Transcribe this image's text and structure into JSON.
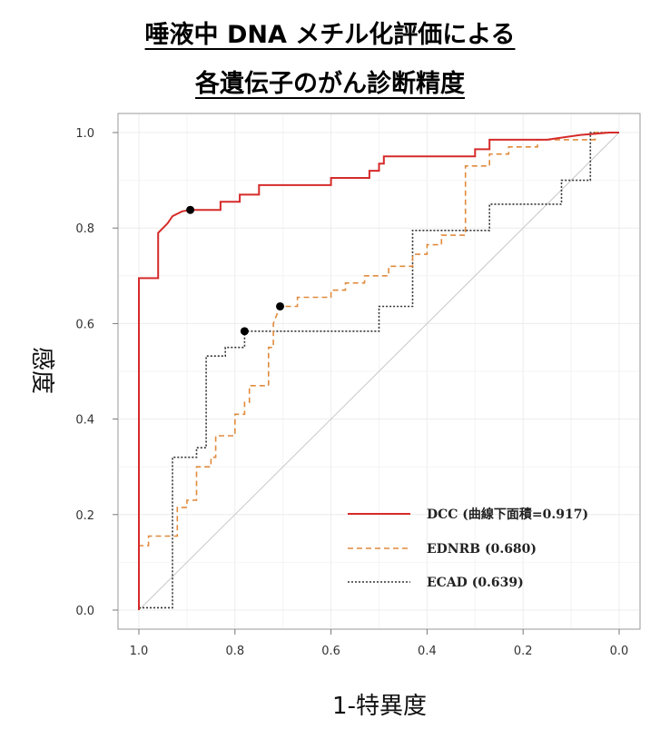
{
  "title_line1": "唾液中 DNA メチル化評価による",
  "title_line2": "各遺伝子のがん診断精度",
  "chart_data": {
    "type": "line",
    "xlabel": "1-特異度",
    "ylabel": "感度",
    "xlim": [
      1.0,
      0.0
    ],
    "ylim": [
      0.0,
      1.0
    ],
    "x_ticks": [
      "1.0",
      "0.8",
      "0.6",
      "0.4",
      "0.2",
      "0.0"
    ],
    "y_ticks": [
      "0.0",
      "0.2",
      "0.4",
      "0.6",
      "0.8",
      "1.0"
    ],
    "grid": true,
    "diagonal_reference": true,
    "legend_position": "bottom-right",
    "series": [
      {
        "name": "DCC (曲線下面積=0.917)",
        "color": "#d62a2a",
        "dash": "solid",
        "marker": [
          0.893,
          0.838
        ],
        "points": [
          [
            1.0,
            0.0
          ],
          [
            1.0,
            0.695
          ],
          [
            0.96,
            0.695
          ],
          [
            0.96,
            0.79
          ],
          [
            0.95,
            0.8
          ],
          [
            0.94,
            0.81
          ],
          [
            0.93,
            0.825
          ],
          [
            0.91,
            0.835
          ],
          [
            0.893,
            0.838
          ],
          [
            0.83,
            0.838
          ],
          [
            0.83,
            0.855
          ],
          [
            0.79,
            0.855
          ],
          [
            0.79,
            0.87
          ],
          [
            0.75,
            0.87
          ],
          [
            0.75,
            0.89
          ],
          [
            0.6,
            0.89
          ],
          [
            0.6,
            0.905
          ],
          [
            0.52,
            0.905
          ],
          [
            0.52,
            0.92
          ],
          [
            0.5,
            0.92
          ],
          [
            0.5,
            0.935
          ],
          [
            0.49,
            0.935
          ],
          [
            0.49,
            0.95
          ],
          [
            0.3,
            0.95
          ],
          [
            0.3,
            0.965
          ],
          [
            0.27,
            0.965
          ],
          [
            0.27,
            0.985
          ],
          [
            0.15,
            0.985
          ],
          [
            0.08,
            0.995
          ],
          [
            0.02,
            1.0
          ],
          [
            0.0,
            1.0
          ]
        ]
      },
      {
        "name": "EDNRB (0.680)",
        "color": "#e08a3c",
        "dash": "6,4",
        "marker": [
          0.706,
          0.636
        ],
        "points": [
          [
            1.0,
            0.0
          ],
          [
            1.0,
            0.135
          ],
          [
            0.98,
            0.135
          ],
          [
            0.98,
            0.155
          ],
          [
            0.92,
            0.155
          ],
          [
            0.92,
            0.215
          ],
          [
            0.9,
            0.215
          ],
          [
            0.9,
            0.23
          ],
          [
            0.88,
            0.23
          ],
          [
            0.88,
            0.3
          ],
          [
            0.85,
            0.3
          ],
          [
            0.85,
            0.32
          ],
          [
            0.84,
            0.32
          ],
          [
            0.84,
            0.365
          ],
          [
            0.8,
            0.365
          ],
          [
            0.8,
            0.41
          ],
          [
            0.78,
            0.41
          ],
          [
            0.78,
            0.435
          ],
          [
            0.77,
            0.435
          ],
          [
            0.77,
            0.47
          ],
          [
            0.73,
            0.47
          ],
          [
            0.73,
            0.55
          ],
          [
            0.72,
            0.55
          ],
          [
            0.72,
            0.6
          ],
          [
            0.706,
            0.636
          ],
          [
            0.67,
            0.636
          ],
          [
            0.67,
            0.655
          ],
          [
            0.6,
            0.655
          ],
          [
            0.6,
            0.67
          ],
          [
            0.57,
            0.67
          ],
          [
            0.57,
            0.685
          ],
          [
            0.53,
            0.685
          ],
          [
            0.53,
            0.7
          ],
          [
            0.48,
            0.7
          ],
          [
            0.48,
            0.72
          ],
          [
            0.43,
            0.72
          ],
          [
            0.43,
            0.745
          ],
          [
            0.4,
            0.745
          ],
          [
            0.4,
            0.765
          ],
          [
            0.37,
            0.765
          ],
          [
            0.37,
            0.785
          ],
          [
            0.32,
            0.785
          ],
          [
            0.32,
            0.81
          ],
          [
            0.32,
            0.93
          ],
          [
            0.27,
            0.93
          ],
          [
            0.27,
            0.955
          ],
          [
            0.23,
            0.955
          ],
          [
            0.23,
            0.97
          ],
          [
            0.17,
            0.97
          ],
          [
            0.17,
            0.985
          ],
          [
            0.05,
            0.985
          ],
          [
            0.05,
            1.0
          ],
          [
            0.0,
            1.0
          ]
        ]
      },
      {
        "name": "ECAD (0.639)",
        "color": "#333333",
        "dash": "2,2",
        "marker": [
          0.78,
          0.584
        ],
        "points": [
          [
            1.0,
            0.005
          ],
          [
            0.93,
            0.005
          ],
          [
            0.93,
            0.32
          ],
          [
            0.88,
            0.32
          ],
          [
            0.88,
            0.34
          ],
          [
            0.86,
            0.34
          ],
          [
            0.86,
            0.532
          ],
          [
            0.82,
            0.532
          ],
          [
            0.82,
            0.55
          ],
          [
            0.78,
            0.55
          ],
          [
            0.78,
            0.584
          ],
          [
            0.5,
            0.584
          ],
          [
            0.5,
            0.636
          ],
          [
            0.43,
            0.636
          ],
          [
            0.43,
            0.795
          ],
          [
            0.27,
            0.795
          ],
          [
            0.27,
            0.85
          ],
          [
            0.12,
            0.85
          ],
          [
            0.12,
            0.9
          ],
          [
            0.06,
            0.9
          ],
          [
            0.06,
            1.0
          ],
          [
            0.0,
            1.0
          ]
        ]
      }
    ]
  }
}
